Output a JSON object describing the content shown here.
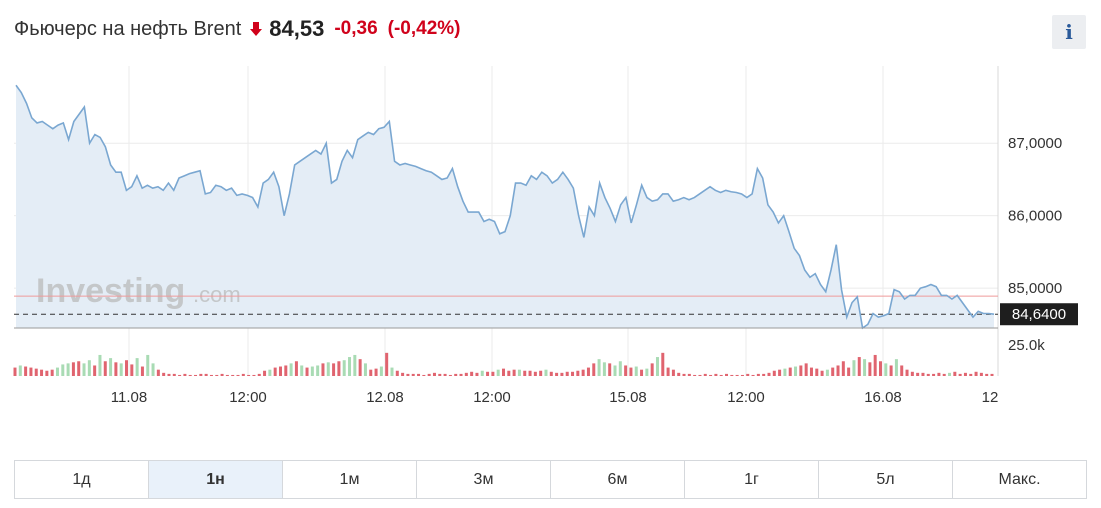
{
  "header": {
    "title": "Фьючерс на нефть Brent",
    "price": "84,53",
    "change": "-0,36",
    "change_pct": "(-0,42%)",
    "direction_icon": "arrow-down-icon",
    "down_color": "#d0021b"
  },
  "info_button": {
    "label": "i",
    "icon": "info-icon"
  },
  "watermark": {
    "text": "Investing",
    "suffix": ".com"
  },
  "colors": {
    "line": "#7aa7d1",
    "area": "#e4edf6",
    "prev_close": "#ef9a9a",
    "volume_up": "#a9dbb4",
    "volume_down": "#e0646f",
    "grid": "#ebebeb"
  },
  "chart_data": {
    "type": "area",
    "ylim": [
      84.45,
      87.9
    ],
    "y_ticks": [
      {
        "value": 87.0,
        "label": "87,0000"
      },
      {
        "value": 86.0,
        "label": "86,0000"
      },
      {
        "value": 85.0,
        "label": "85,0000"
      }
    ],
    "current_value": 84.64,
    "current_label": "84,6400",
    "previous_close": 84.89,
    "x_ticks": [
      "11.08",
      "12:00",
      "12.08",
      "12:00",
      "15.08",
      "12:00",
      "16.08",
      "12"
    ],
    "volume_tick_label": "25.0k",
    "volume_max": 38000,
    "series": [
      {
        "values": [
          87.8,
          87.7,
          87.55,
          87.35,
          87.28,
          87.3,
          87.25,
          87.2,
          87.25,
          87.28,
          87.05,
          87.3,
          87.4,
          87.5,
          87.0,
          87.12,
          87.08,
          86.95,
          86.7,
          86.6,
          86.6,
          86.35,
          86.4,
          86.55,
          86.38,
          86.42,
          86.38,
          86.4,
          86.35,
          86.45,
          86.35,
          86.52,
          86.55,
          86.58,
          86.6,
          86.62,
          86.3,
          86.32,
          86.42,
          86.4,
          86.35,
          86.38,
          86.28,
          86.3,
          86.28,
          86.25,
          86.12,
          86.45,
          86.5,
          86.6,
          86.4,
          86.0,
          86.3,
          86.7,
          86.75,
          86.8,
          86.85,
          86.9,
          86.85,
          87.0,
          86.45,
          86.5,
          86.75,
          86.9,
          86.8,
          87.05,
          87.1,
          87.15,
          87.12,
          87.2,
          87.22,
          87.3,
          86.75,
          86.7,
          86.72,
          86.7,
          86.68,
          86.65,
          86.62,
          86.6,
          86.55,
          86.5,
          86.52,
          86.65,
          86.4,
          86.2,
          86.05,
          86.05,
          86.05,
          85.92,
          85.95,
          85.92,
          85.75,
          85.78,
          86.0,
          86.45,
          86.45,
          86.42,
          86.55,
          86.5,
          86.6,
          86.55,
          86.45,
          86.5,
          86.6,
          86.5,
          86.38,
          86.0,
          85.7,
          86.12,
          86.0,
          86.45,
          86.25,
          86.1,
          85.92,
          86.15,
          86.25,
          85.9,
          86.15,
          86.42,
          86.25,
          86.2,
          86.22,
          86.3,
          86.3,
          86.2,
          86.22,
          86.25,
          86.22,
          86.25,
          86.3,
          86.35,
          86.4,
          86.35,
          86.32,
          86.35,
          86.33,
          86.32,
          86.3,
          86.25,
          86.3,
          86.65,
          86.52,
          86.15,
          86.05,
          85.9,
          86.0,
          85.78,
          85.55,
          85.45,
          85.25,
          85.15,
          85.2,
          85.05,
          84.95,
          85.25,
          85.6,
          84.98,
          84.6,
          84.8,
          84.88,
          84.45,
          84.5,
          84.65,
          84.6,
          84.62,
          84.65,
          84.98,
          84.95,
          84.85,
          84.9,
          84.9,
          85.0,
          85.02,
          85.05,
          85.02,
          84.9,
          84.9,
          84.85,
          84.9,
          84.8,
          84.7,
          84.6,
          84.68,
          84.65,
          84.65,
          84.64
        ]
      }
    ],
    "volumes": [
      {
        "v": 8000,
        "up": false
      },
      {
        "v": 10000,
        "up": true
      },
      {
        "v": 9000,
        "up": false
      },
      {
        "v": 8000,
        "up": false
      },
      {
        "v": 7000,
        "up": false
      },
      {
        "v": 6000,
        "up": false
      },
      {
        "v": 5000,
        "up": false
      },
      {
        "v": 6000,
        "up": false
      },
      {
        "v": 8000,
        "up": true
      },
      {
        "v": 11000,
        "up": true
      },
      {
        "v": 12000,
        "up": true
      },
      {
        "v": 13000,
        "up": false
      },
      {
        "v": 14000,
        "up": false
      },
      {
        "v": 12000,
        "up": true
      },
      {
        "v": 15000,
        "up": true
      },
      {
        "v": 10000,
        "up": false
      },
      {
        "v": 20000,
        "up": true
      },
      {
        "v": 14000,
        "up": false
      },
      {
        "v": 17000,
        "up": true
      },
      {
        "v": 13000,
        "up": false
      },
      {
        "v": 12000,
        "up": true
      },
      {
        "v": 15000,
        "up": false
      },
      {
        "v": 11000,
        "up": false
      },
      {
        "v": 17000,
        "up": true
      },
      {
        "v": 9000,
        "up": false
      },
      {
        "v": 20000,
        "up": true
      },
      {
        "v": 12000,
        "up": true
      },
      {
        "v": 6000,
        "up": false
      },
      {
        "v": 3000,
        "up": false
      },
      {
        "v": 2000,
        "up": false
      },
      {
        "v": 2000,
        "up": false
      },
      {
        "v": 1000,
        "up": false
      },
      {
        "v": 2000,
        "up": false
      },
      {
        "v": 1000,
        "up": false
      },
      {
        "v": 1000,
        "up": false
      },
      {
        "v": 2000,
        "up": false
      },
      {
        "v": 2000,
        "up": false
      },
      {
        "v": 1000,
        "up": false
      },
      {
        "v": 1000,
        "up": false
      },
      {
        "v": 2000,
        "up": false
      },
      {
        "v": 1000,
        "up": false
      },
      {
        "v": 1000,
        "up": false
      },
      {
        "v": 1000,
        "up": false
      },
      {
        "v": 2000,
        "up": false
      },
      {
        "v": 1000,
        "up": false
      },
      {
        "v": 1000,
        "up": false
      },
      {
        "v": 2000,
        "up": false
      },
      {
        "v": 5000,
        "up": false
      },
      {
        "v": 6000,
        "up": true
      },
      {
        "v": 8000,
        "up": false
      },
      {
        "v": 9000,
        "up": false
      },
      {
        "v": 10000,
        "up": false
      },
      {
        "v": 12000,
        "up": true
      },
      {
        "v": 14000,
        "up": false
      },
      {
        "v": 10000,
        "up": true
      },
      {
        "v": 8000,
        "up": false
      },
      {
        "v": 9000,
        "up": true
      },
      {
        "v": 10000,
        "up": true
      },
      {
        "v": 12000,
        "up": false
      },
      {
        "v": 13000,
        "up": true
      },
      {
        "v": 12000,
        "up": false
      },
      {
        "v": 14000,
        "up": false
      },
      {
        "v": 15000,
        "up": true
      },
      {
        "v": 18000,
        "up": true
      },
      {
        "v": 20000,
        "up": true
      },
      {
        "v": 16000,
        "up": false
      },
      {
        "v": 12000,
        "up": true
      },
      {
        "v": 6000,
        "up": false
      },
      {
        "v": 7000,
        "up": false
      },
      {
        "v": 9000,
        "up": true
      },
      {
        "v": 22000,
        "up": false
      },
      {
        "v": 8000,
        "up": true
      },
      {
        "v": 5000,
        "up": false
      },
      {
        "v": 3000,
        "up": false
      },
      {
        "v": 2000,
        "up": false
      },
      {
        "v": 2000,
        "up": false
      },
      {
        "v": 2000,
        "up": false
      },
      {
        "v": 1000,
        "up": false
      },
      {
        "v": 2000,
        "up": false
      },
      {
        "v": 3000,
        "up": false
      },
      {
        "v": 2000,
        "up": false
      },
      {
        "v": 2000,
        "up": false
      },
      {
        "v": 1000,
        "up": false
      },
      {
        "v": 2000,
        "up": false
      },
      {
        "v": 2000,
        "up": false
      },
      {
        "v": 3000,
        "up": false
      },
      {
        "v": 4000,
        "up": false
      },
      {
        "v": 3000,
        "up": false
      },
      {
        "v": 5000,
        "up": true
      },
      {
        "v": 4000,
        "up": false
      },
      {
        "v": 4000,
        "up": false
      },
      {
        "v": 6000,
        "up": true
      },
      {
        "v": 7000,
        "up": false
      },
      {
        "v": 5000,
        "up": false
      },
      {
        "v": 6000,
        "up": false
      },
      {
        "v": 6000,
        "up": true
      },
      {
        "v": 5000,
        "up": false
      },
      {
        "v": 5000,
        "up": false
      },
      {
        "v": 4000,
        "up": false
      },
      {
        "v": 5000,
        "up": false
      },
      {
        "v": 6000,
        "up": true
      },
      {
        "v": 4000,
        "up": false
      },
      {
        "v": 3000,
        "up": false
      },
      {
        "v": 3000,
        "up": false
      },
      {
        "v": 4000,
        "up": false
      },
      {
        "v": 4000,
        "up": false
      },
      {
        "v": 5000,
        "up": false
      },
      {
        "v": 6000,
        "up": false
      },
      {
        "v": 8000,
        "up": false
      },
      {
        "v": 12000,
        "up": false
      },
      {
        "v": 16000,
        "up": true
      },
      {
        "v": 13000,
        "up": true
      },
      {
        "v": 12000,
        "up": false
      },
      {
        "v": 10000,
        "up": true
      },
      {
        "v": 14000,
        "up": true
      },
      {
        "v": 10000,
        "up": false
      },
      {
        "v": 8000,
        "up": false
      },
      {
        "v": 9000,
        "up": true
      },
      {
        "v": 6000,
        "up": false
      },
      {
        "v": 7000,
        "up": true
      },
      {
        "v": 12000,
        "up": false
      },
      {
        "v": 18000,
        "up": true
      },
      {
        "v": 22000,
        "up": false
      },
      {
        "v": 8000,
        "up": false
      },
      {
        "v": 6000,
        "up": false
      },
      {
        "v": 3000,
        "up": false
      },
      {
        "v": 2000,
        "up": false
      },
      {
        "v": 2000,
        "up": false
      },
      {
        "v": 1000,
        "up": false
      },
      {
        "v": 1000,
        "up": false
      },
      {
        "v": 2000,
        "up": false
      },
      {
        "v": 1000,
        "up": false
      },
      {
        "v": 2000,
        "up": false
      },
      {
        "v": 1000,
        "up": false
      },
      {
        "v": 2000,
        "up": false
      },
      {
        "v": 1000,
        "up": false
      },
      {
        "v": 1000,
        "up": false
      },
      {
        "v": 1000,
        "up": false
      },
      {
        "v": 2000,
        "up": false
      },
      {
        "v": 1000,
        "up": false
      },
      {
        "v": 2000,
        "up": false
      },
      {
        "v": 2000,
        "up": false
      },
      {
        "v": 3000,
        "up": false
      },
      {
        "v": 5000,
        "up": false
      },
      {
        "v": 6000,
        "up": false
      },
      {
        "v": 7000,
        "up": true
      },
      {
        "v": 8000,
        "up": false
      },
      {
        "v": 9000,
        "up": true
      },
      {
        "v": 10000,
        "up": false
      },
      {
        "v": 12000,
        "up": false
      },
      {
        "v": 8000,
        "up": false
      },
      {
        "v": 7000,
        "up": false
      },
      {
        "v": 5000,
        "up": false
      },
      {
        "v": 6000,
        "up": true
      },
      {
        "v": 8000,
        "up": false
      },
      {
        "v": 10000,
        "up": false
      },
      {
        "v": 14000,
        "up": false
      },
      {
        "v": 8000,
        "up": false
      },
      {
        "v": 15000,
        "up": true
      },
      {
        "v": 18000,
        "up": false
      },
      {
        "v": 16000,
        "up": true
      },
      {
        "v": 13000,
        "up": false
      },
      {
        "v": 20000,
        "up": false
      },
      {
        "v": 14000,
        "up": false
      },
      {
        "v": 12000,
        "up": true
      },
      {
        "v": 10000,
        "up": false
      },
      {
        "v": 16000,
        "up": true
      },
      {
        "v": 10000,
        "up": false
      },
      {
        "v": 6000,
        "up": false
      },
      {
        "v": 4000,
        "up": false
      },
      {
        "v": 3000,
        "up": false
      },
      {
        "v": 3000,
        "up": false
      },
      {
        "v": 2000,
        "up": false
      },
      {
        "v": 2000,
        "up": false
      },
      {
        "v": 3000,
        "up": false
      },
      {
        "v": 2000,
        "up": false
      },
      {
        "v": 3000,
        "up": true
      },
      {
        "v": 4000,
        "up": false
      },
      {
        "v": 2000,
        "up": false
      },
      {
        "v": 3000,
        "up": false
      },
      {
        "v": 2000,
        "up": false
      },
      {
        "v": 4000,
        "up": false
      },
      {
        "v": 3000,
        "up": false
      },
      {
        "v": 2000,
        "up": false
      },
      {
        "v": 2000,
        "up": false
      }
    ]
  },
  "ranges": [
    {
      "label": "1д",
      "active": false
    },
    {
      "label": "1н",
      "active": true
    },
    {
      "label": "1м",
      "active": false
    },
    {
      "label": "3м",
      "active": false
    },
    {
      "label": "6м",
      "active": false
    },
    {
      "label": "1г",
      "active": false
    },
    {
      "label": "5л",
      "active": false
    },
    {
      "label": "Макс.",
      "active": false
    }
  ]
}
